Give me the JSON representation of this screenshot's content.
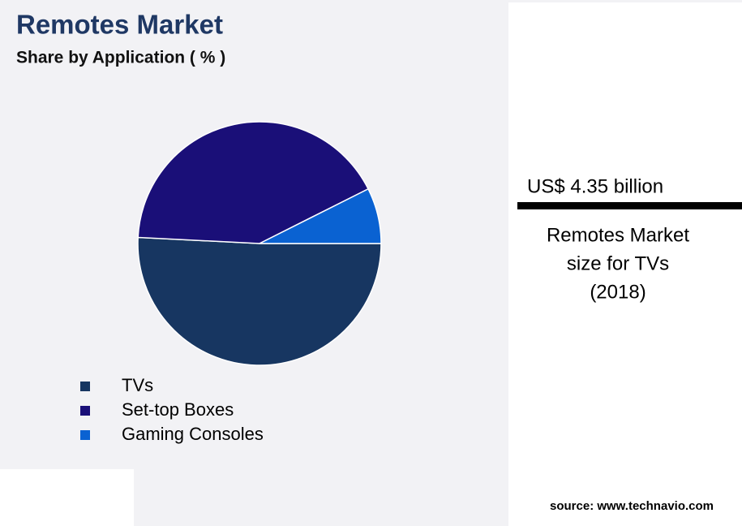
{
  "chart_data": {
    "type": "pie",
    "title": "Remotes Market",
    "subtitle": "Share by Application ( % )",
    "categories": [
      "TVs",
      "Set-top Boxes",
      "Gaming Consoles"
    ],
    "values": [
      50.8,
      41.8,
      7.4
    ],
    "colors": [
      "#173661",
      "#1a0f78",
      "#0a62d2"
    ]
  },
  "callout": {
    "value": "US$ 4.35 billion",
    "description": [
      "Remotes Market",
      "size for TVs",
      "(2018)"
    ]
  },
  "source": "source: www.technavio.com"
}
